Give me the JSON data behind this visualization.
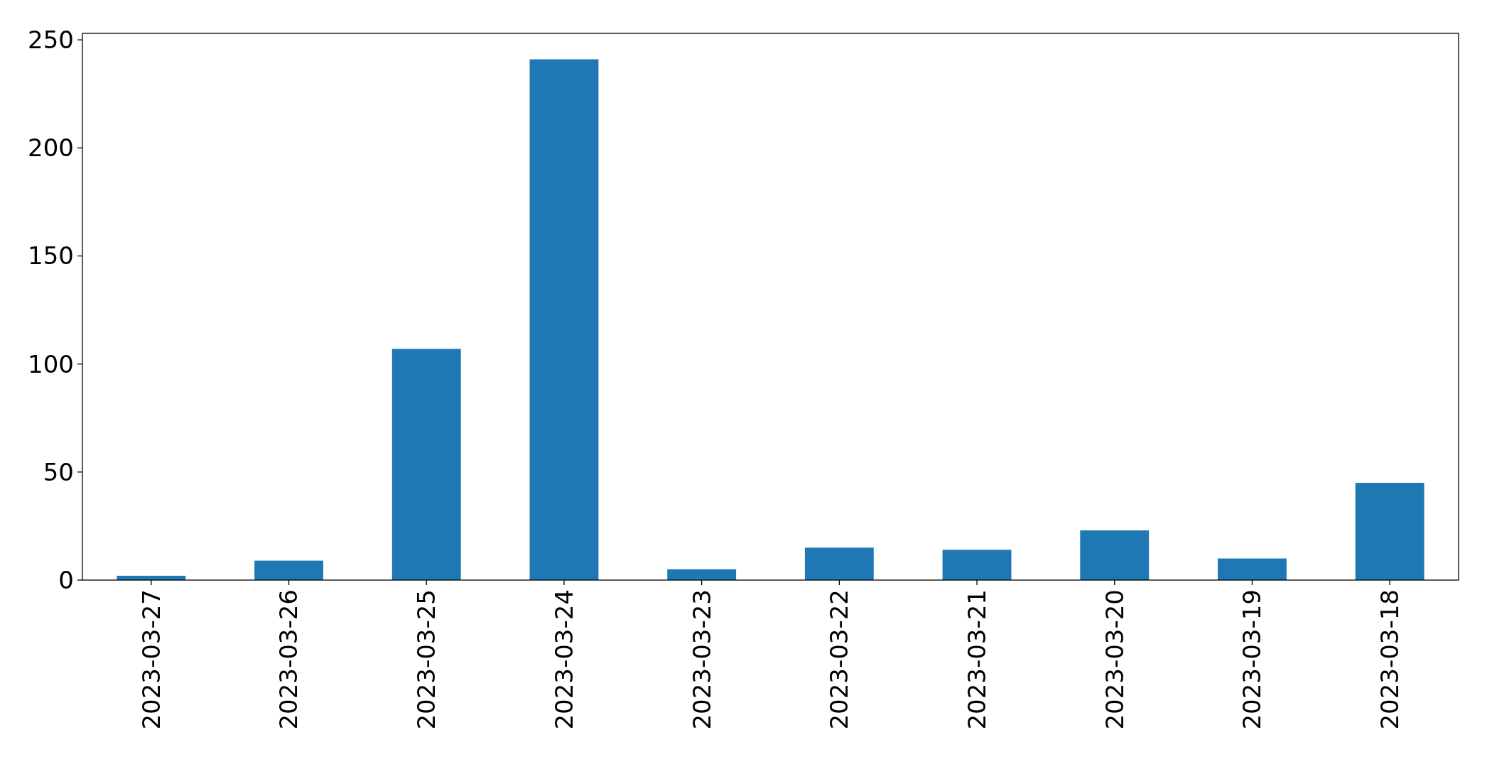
{
  "chart_data": {
    "type": "bar",
    "categories": [
      "2023-03-27",
      "2023-03-26",
      "2023-03-25",
      "2023-03-24",
      "2023-03-23",
      "2023-03-22",
      "2023-03-21",
      "2023-03-20",
      "2023-03-19",
      "2023-03-18"
    ],
    "values": [
      2,
      9,
      107,
      241,
      5,
      15,
      14,
      23,
      10,
      45
    ],
    "color": "#1f77b4",
    "ylim": [
      0,
      253
    ],
    "yticks": [
      0,
      50,
      100,
      150,
      200,
      250
    ]
  }
}
